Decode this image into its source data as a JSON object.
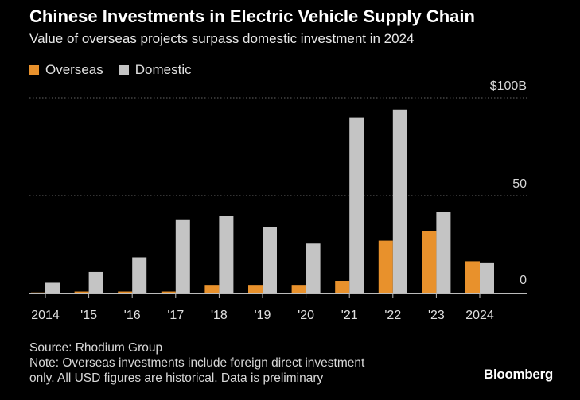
{
  "header": {
    "title": "Chinese Investments in Electric Vehicle Supply Chain",
    "subtitle": "Value of overseas projects surpass domestic investment in 2024"
  },
  "legend": {
    "overseas_label": "Overseas",
    "domestic_label": "Domestic"
  },
  "colors": {
    "overseas": "#E8912C",
    "domestic": "#C4C4C4",
    "grid": "#666666",
    "baseline": "#BBBBBB"
  },
  "chart_data": {
    "type": "bar",
    "title": "Chinese Investments in Electric Vehicle Supply Chain",
    "categories": [
      "2014",
      "'15",
      "'16",
      "'17",
      "'18",
      "'19",
      "'20",
      "'21",
      "'22",
      "'23",
      "2024"
    ],
    "series": [
      {
        "name": "Overseas",
        "values": [
          0.5,
          1,
          1,
          1,
          4,
          4,
          4,
          6.5,
          27,
          32,
          16.5
        ]
      },
      {
        "name": "Domestic",
        "values": [
          5.5,
          11,
          18.5,
          37.5,
          39.5,
          34,
          25.5,
          90,
          94,
          41.5,
          15.5
        ]
      }
    ],
    "ylim": [
      0,
      100
    ],
    "yticks": [
      {
        "value": 0,
        "label": "0"
      },
      {
        "value": 50,
        "label": "50"
      },
      {
        "value": 100,
        "label": "$100B"
      }
    ],
    "xlabel": "",
    "ylabel": ""
  },
  "footer": {
    "source": "Source: Rhodium Group",
    "note_line1": "Note: Overseas investments include foreign direct investment",
    "note_line2": "only. All USD figures are historical. Data is preliminary",
    "brand": "Bloomberg"
  }
}
